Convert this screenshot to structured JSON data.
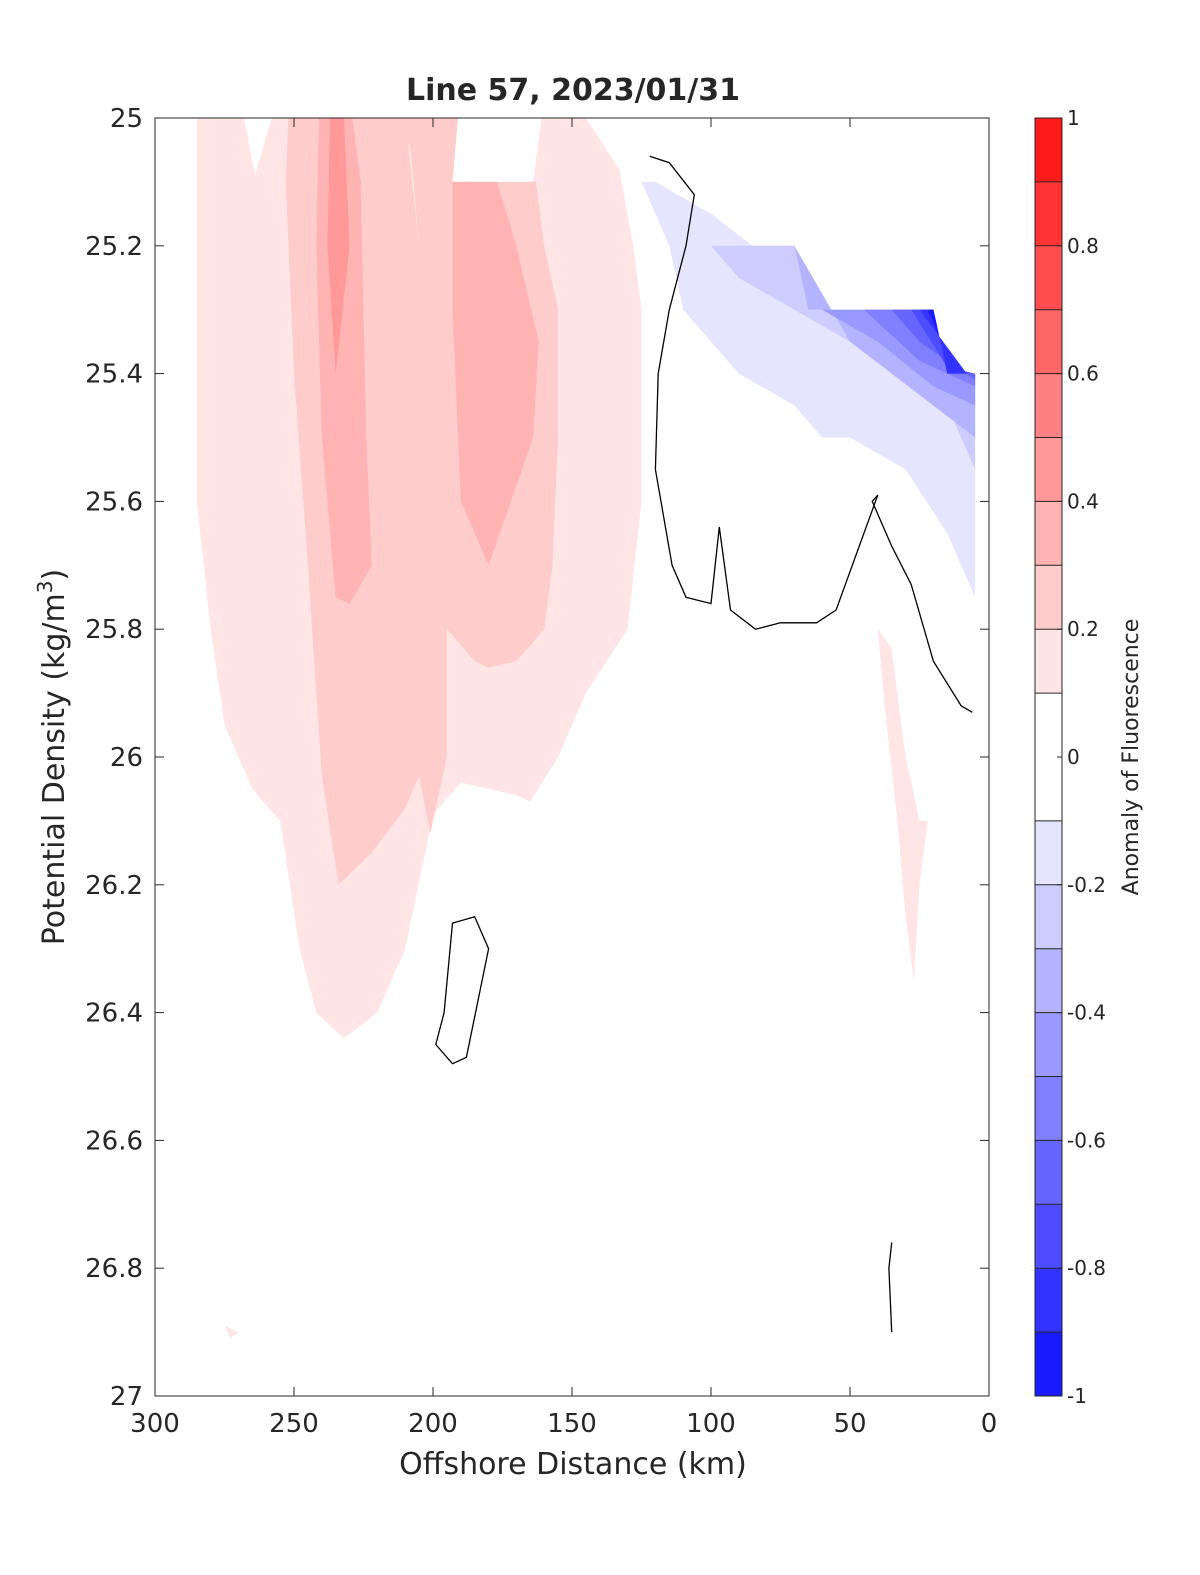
{
  "chart_data": {
    "type": "contour",
    "title": "Line 57, 2023/01/31",
    "xlabel": "Offshore Distance (km)",
    "ylabel_main": "Potential Density (kg/m",
    "ylabel_sup": "3",
    "ylabel_close": ")",
    "xlim": [
      300,
      0
    ],
    "ylim": [
      25,
      27
    ],
    "x_reversed": true,
    "y_reversed": true,
    "grid": false,
    "xticks": [
      300,
      250,
      200,
      150,
      100,
      50,
      0
    ],
    "xtick_labels": [
      "300",
      "250",
      "200",
      "150",
      "100",
      "50",
      "0"
    ],
    "yticks": [
      25,
      25.2,
      25.4,
      25.6,
      25.8,
      26,
      26.2,
      26.4,
      26.6,
      26.8,
      27
    ],
    "ytick_labels": [
      "25",
      "25.2",
      "25.4",
      "25.6",
      "25.8",
      "26",
      "26.2",
      "26.4",
      "26.6",
      "26.8",
      "27"
    ],
    "colorbar": {
      "label": "Anomaly of Fluorescence",
      "range": [
        -1,
        1
      ],
      "levels": [
        -1,
        -0.9,
        -0.8,
        -0.7,
        -0.6,
        -0.5,
        -0.4,
        -0.3,
        -0.2,
        -0.1,
        0.1,
        0.2,
        0.3,
        0.4,
        0.5,
        0.6,
        0.7,
        0.8,
        0.9,
        1
      ],
      "tick_values": [
        1,
        0.8,
        0.6,
        0.4,
        0.2,
        0,
        -0.2,
        -0.4,
        -0.6,
        -0.8,
        -1
      ],
      "tick_labels": [
        "1",
        "0.8",
        "0.6",
        "0.4",
        "0.2",
        "0",
        "-0.2",
        "-0.4",
        "-0.6",
        "-0.8",
        "-1"
      ],
      "bands": [
        {
          "range": [
            0.9,
            1.0
          ],
          "color": "#ff1a1a"
        },
        {
          "range": [
            0.8,
            0.9
          ],
          "color": "#ff3333"
        },
        {
          "range": [
            0.7,
            0.8
          ],
          "color": "#ff4d4d"
        },
        {
          "range": [
            0.6,
            0.7
          ],
          "color": "#ff6666"
        },
        {
          "range": [
            0.5,
            0.6
          ],
          "color": "#ff8080"
        },
        {
          "range": [
            0.4,
            0.5
          ],
          "color": "#ff9999"
        },
        {
          "range": [
            0.3,
            0.4
          ],
          "color": "#ffb3b3"
        },
        {
          "range": [
            0.2,
            0.3
          ],
          "color": "#ffcccc"
        },
        {
          "range": [
            0.1,
            0.2
          ],
          "color": "#ffe5e5"
        },
        {
          "range": [
            -0.1,
            0.1
          ],
          "color": "#ffffff"
        },
        {
          "range": [
            -0.2,
            -0.1
          ],
          "color": "#e5e5ff"
        },
        {
          "range": [
            -0.3,
            -0.2
          ],
          "color": "#ccccff"
        },
        {
          "range": [
            -0.4,
            -0.3
          ],
          "color": "#b3b3ff"
        },
        {
          "range": [
            -0.5,
            -0.4
          ],
          "color": "#9999ff"
        },
        {
          "range": [
            -0.6,
            -0.5
          ],
          "color": "#8080ff"
        },
        {
          "range": [
            -0.7,
            -0.6
          ],
          "color": "#6666ff"
        },
        {
          "range": [
            -0.8,
            -0.7
          ],
          "color": "#4d4dff"
        },
        {
          "range": [
            -0.9,
            -0.8
          ],
          "color": "#3333ff"
        },
        {
          "range": [
            -1.0,
            -0.9
          ],
          "color": "#1a1aff"
        }
      ]
    },
    "filled_regions": [
      {
        "level": 0.1,
        "color": "#ffe5e5",
        "points": [
          [
            285,
            25
          ],
          [
            268,
            25
          ],
          [
            264,
            25.09
          ],
          [
            258,
            25
          ],
          [
            145,
            25
          ],
          [
            133,
            25.08
          ],
          [
            128,
            25.2
          ],
          [
            125,
            25.3
          ],
          [
            125,
            25.6
          ],
          [
            130,
            25.8
          ],
          [
            145,
            25.9
          ],
          [
            155,
            26
          ],
          [
            165,
            26.07
          ],
          [
            170,
            26.06
          ],
          [
            180,
            26.05
          ],
          [
            190,
            26.04
          ],
          [
            200,
            26.09
          ],
          [
            210,
            26.3
          ],
          [
            220,
            26.4
          ],
          [
            232,
            26.44
          ],
          [
            242,
            26.4
          ],
          [
            248,
            26.3
          ],
          [
            255,
            26.1
          ],
          [
            265,
            26.05
          ],
          [
            275,
            25.95
          ],
          [
            280,
            25.8
          ],
          [
            285,
            25.6
          ]
        ]
      },
      {
        "level": 0.1,
        "color": "#ffffff",
        "points": [
          [
            197,
            25
          ],
          [
            161,
            25
          ],
          [
            164,
            25.1
          ],
          [
            193,
            25.1
          ]
        ]
      },
      {
        "level": 0.2,
        "color": "#ffcccc",
        "points": [
          [
            252,
            25
          ],
          [
            225,
            25
          ],
          [
            210,
            25
          ],
          [
            205,
            25.2
          ],
          [
            203,
            25.4
          ],
          [
            200,
            25.6
          ],
          [
            195,
            25.75
          ],
          [
            195,
            26
          ],
          [
            201,
            26.12
          ],
          [
            205,
            26.03
          ],
          [
            210,
            26.08
          ],
          [
            222,
            26.15
          ],
          [
            234,
            26.2
          ],
          [
            240,
            26.03
          ],
          [
            245,
            25.7
          ],
          [
            250,
            25.4
          ],
          [
            253,
            25.1
          ]
        ]
      },
      {
        "level": 0.2,
        "color": "#ffcccc",
        "points": [
          [
            212,
            25
          ],
          [
            191,
            25
          ],
          [
            193,
            25.1
          ],
          [
            163,
            25.1
          ],
          [
            160,
            25.2
          ],
          [
            155,
            25.3
          ],
          [
            155,
            25.5
          ],
          [
            157,
            25.7
          ],
          [
            160,
            25.8
          ],
          [
            170,
            25.85
          ],
          [
            180,
            25.86
          ],
          [
            185,
            25.85
          ],
          [
            195,
            25.8
          ],
          [
            200,
            25.6
          ],
          [
            204,
            25.4
          ],
          [
            205,
            25.2
          ],
          [
            208,
            25.05
          ]
        ]
      },
      {
        "level": 0.3,
        "color": "#ffb3b3",
        "points": [
          [
            241,
            25
          ],
          [
            229,
            25
          ],
          [
            226,
            25.1
          ],
          [
            225,
            25.3
          ],
          [
            224,
            25.5
          ],
          [
            222,
            25.7
          ],
          [
            230,
            25.76
          ],
          [
            235,
            25.75
          ],
          [
            240,
            25.5
          ],
          [
            242,
            25.2
          ]
        ]
      },
      {
        "level": 0.3,
        "color": "#ffb3b3",
        "points": [
          [
            193,
            25.1
          ],
          [
            177,
            25.1
          ],
          [
            170,
            25.2
          ],
          [
            162,
            25.35
          ],
          [
            164,
            25.5
          ],
          [
            172,
            25.6
          ],
          [
            180,
            25.7
          ],
          [
            190,
            25.6
          ],
          [
            193,
            25.3
          ]
        ]
      },
      {
        "level": 0.4,
        "color": "#ff9999",
        "points": [
          [
            237,
            25
          ],
          [
            232,
            25
          ],
          [
            230,
            25.2
          ],
          [
            235,
            25.4
          ],
          [
            238,
            25.2
          ]
        ]
      },
      {
        "level": 0.1,
        "color": "#ffe5e5",
        "points": [
          [
            40,
            25.8
          ],
          [
            35,
            25.83
          ],
          [
            33,
            25.9
          ],
          [
            30,
            26.0
          ],
          [
            25,
            26.1
          ],
          [
            22,
            26.1
          ],
          [
            25,
            26.2
          ],
          [
            27,
            26.35
          ],
          [
            30,
            26.25
          ],
          [
            33,
            26.1
          ],
          [
            38,
            25.9
          ]
        ]
      },
      {
        "level": 0.1,
        "color": "#ffe5e5",
        "points": [
          [
            275,
            26.89
          ],
          [
            270,
            26.9
          ],
          [
            273,
            26.91
          ]
        ]
      },
      {
        "level": -0.1,
        "color": "#e5e5ff",
        "points": [
          [
            125,
            25.1
          ],
          [
            120,
            25.1
          ],
          [
            100,
            25.15
          ],
          [
            85,
            25.2
          ],
          [
            70,
            25.2
          ],
          [
            65,
            25.3
          ],
          [
            20,
            25.3
          ],
          [
            15,
            25.4
          ],
          [
            5,
            25.4
          ],
          [
            5,
            25.75
          ],
          [
            15,
            25.65
          ],
          [
            30,
            25.55
          ],
          [
            50,
            25.5
          ],
          [
            60,
            25.5
          ],
          [
            70,
            25.45
          ],
          [
            90,
            25.4
          ],
          [
            110,
            25.3
          ],
          [
            115,
            25.2
          ]
        ]
      },
      {
        "level": -0.2,
        "color": "#ccccff",
        "points": [
          [
            100,
            25.2
          ],
          [
            70,
            25.2
          ],
          [
            65,
            25.3
          ],
          [
            20,
            25.3
          ],
          [
            15,
            25.4
          ],
          [
            5,
            25.4
          ],
          [
            5,
            25.55
          ],
          [
            15,
            25.45
          ],
          [
            30,
            25.4
          ],
          [
            50,
            25.35
          ],
          [
            70,
            25.3
          ],
          [
            90,
            25.25
          ]
        ]
      },
      {
        "level": -0.3,
        "color": "#b3b3ff",
        "points": [
          [
            70,
            25.2
          ],
          [
            65,
            25.3
          ],
          [
            20,
            25.3
          ],
          [
            15,
            25.4
          ],
          [
            5,
            25.4
          ],
          [
            5,
            25.5
          ],
          [
            20,
            25.45
          ],
          [
            35,
            25.4
          ],
          [
            50,
            25.35
          ]
        ]
      },
      {
        "level": -0.4,
        "color": "#9999ff",
        "points": [
          [
            60,
            25.3
          ],
          [
            20,
            25.3
          ],
          [
            15,
            25.4
          ],
          [
            5,
            25.4
          ],
          [
            5,
            25.45
          ],
          [
            20,
            25.42
          ],
          [
            40,
            25.35
          ]
        ]
      },
      {
        "level": -0.5,
        "color": "#8080ff",
        "points": [
          [
            45,
            25.3
          ],
          [
            20,
            25.3
          ],
          [
            15,
            25.4
          ],
          [
            5,
            25.4
          ],
          [
            5,
            25.42
          ],
          [
            25,
            25.38
          ]
        ]
      },
      {
        "level": -0.6,
        "color": "#6666ff",
        "points": [
          [
            35,
            25.3
          ],
          [
            20,
            25.3
          ],
          [
            15,
            25.4
          ],
          [
            5,
            25.4
          ],
          [
            5,
            25.41
          ],
          [
            25,
            25.35
          ]
        ]
      },
      {
        "level": -0.7,
        "color": "#4d4dff",
        "points": [
          [
            28,
            25.3
          ],
          [
            20,
            25.3
          ],
          [
            15,
            25.4
          ],
          [
            5,
            25.4
          ],
          [
            15,
            25.39
          ]
        ]
      },
      {
        "level": -0.8,
        "color": "#3333ff",
        "points": [
          [
            25,
            25.3
          ],
          [
            20,
            25.3
          ],
          [
            15,
            25.4
          ],
          [
            8,
            25.4
          ]
        ]
      },
      {
        "level": -0.9,
        "color": "#1a1aff",
        "points": [
          [
            22,
            25.3
          ],
          [
            20,
            25.3
          ],
          [
            18,
            25.34
          ]
        ]
      }
    ],
    "white_patch": [
      [
        100,
        25.2
      ],
      [
        70,
        25.2
      ],
      [
        65,
        25.3
      ],
      [
        20,
        25.3
      ],
      [
        15,
        25.4
      ],
      [
        5,
        25.4
      ],
      [
        5,
        25.0
      ],
      [
        130,
        25.0
      ],
      [
        125,
        25.08
      ]
    ],
    "contour_lines": [
      {
        "level": 0,
        "closed": false,
        "points": [
          [
            122,
            25.06
          ],
          [
            115,
            25.07
          ],
          [
            106,
            25.12
          ],
          [
            109,
            25.2
          ],
          [
            115,
            25.3
          ],
          [
            119,
            25.4
          ],
          [
            120,
            25.55
          ],
          [
            114,
            25.7
          ],
          [
            109,
            25.75
          ],
          [
            100,
            25.76
          ],
          [
            97,
            25.64
          ],
          [
            93,
            25.77
          ],
          [
            84,
            25.8
          ],
          [
            75,
            25.79
          ],
          [
            62,
            25.79
          ],
          [
            55,
            25.77
          ],
          [
            40,
            25.59
          ],
          [
            42,
            25.6
          ],
          [
            35,
            25.67
          ],
          [
            28,
            25.73
          ],
          [
            20,
            25.85
          ],
          [
            10,
            25.92
          ],
          [
            6,
            25.93
          ]
        ]
      },
      {
        "level": 0,
        "closed": true,
        "points": [
          [
            193,
            26.26
          ],
          [
            185,
            26.25
          ],
          [
            180,
            26.3
          ],
          [
            188,
            26.47
          ],
          [
            193,
            26.48
          ],
          [
            199,
            26.45
          ],
          [
            196,
            26.4
          ]
        ]
      },
      {
        "level": 0,
        "closed": false,
        "points": [
          [
            35,
            26.76
          ],
          [
            36,
            26.8
          ],
          [
            35,
            26.9
          ]
        ]
      }
    ]
  }
}
